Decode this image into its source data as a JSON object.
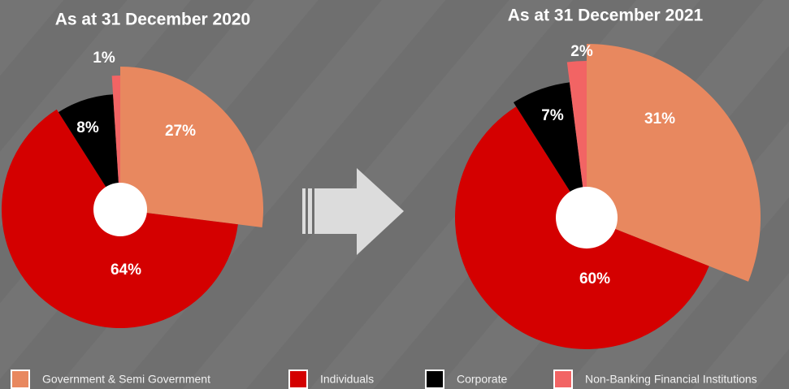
{
  "chart_data": [
    {
      "type": "pie",
      "title": "As at 31 December 2020",
      "categories": [
        "Government & Semi Government",
        "Individuals",
        "Corporate",
        "Non-Banking Financial Institutions"
      ],
      "values": [
        27,
        64,
        8,
        1
      ],
      "value_labels": [
        "27%",
        "64%",
        "8%",
        "1%"
      ],
      "colors": [
        "#e8885f",
        "#d40000",
        "#000000",
        "#f26464"
      ]
    },
    {
      "type": "pie",
      "title": "As at 31 December 2021",
      "categories": [
        "Government & Semi Government",
        "Individuals",
        "Corporate",
        "Non-Banking Financial Institutions"
      ],
      "values": [
        31,
        60,
        7,
        2
      ],
      "value_labels": [
        "31%",
        "60%",
        "7%",
        "2%"
      ],
      "colors": [
        "#e8885f",
        "#d40000",
        "#000000",
        "#f26464"
      ]
    }
  ]
}
